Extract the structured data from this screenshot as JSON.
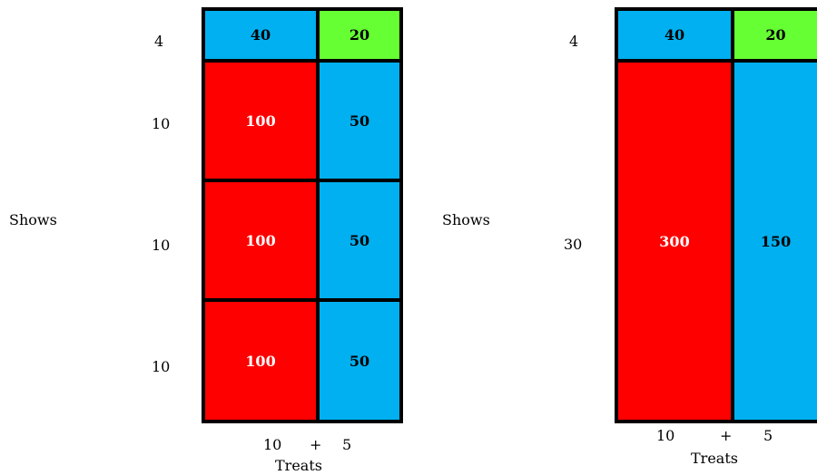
{
  "left": {
    "side_label": "Shows",
    "row_labels": [
      "4",
      "10",
      "10",
      "10"
    ],
    "cells": [
      [
        "40",
        "20"
      ],
      [
        "100",
        "50"
      ],
      [
        "100",
        "50"
      ],
      [
        "100",
        "50"
      ]
    ],
    "bottom": {
      "a": "10",
      "plus": "+",
      "b": "5",
      "title": "Treats"
    }
  },
  "right": {
    "side_label": "Shows",
    "row_labels": [
      "4",
      "30"
    ],
    "cells": [
      [
        "40",
        "20"
      ],
      [
        "300",
        "150"
      ]
    ],
    "bottom": {
      "a": "10",
      "plus": "+",
      "b": "5",
      "title": "Treats"
    }
  },
  "colors": {
    "red": "#ff0000",
    "blue": "#00b0f0",
    "green": "#66ff33",
    "border": "#000000"
  }
}
